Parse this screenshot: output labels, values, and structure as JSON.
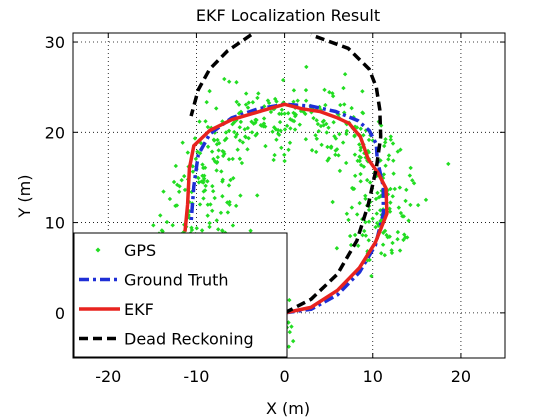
{
  "chart_data": {
    "type": "scatter",
    "title": "EKF Localization Result",
    "xlabel": "X (m)",
    "ylabel": "Y (m)",
    "xlim": [
      -24,
      25
    ],
    "ylim": [
      -5,
      31
    ],
    "xticks": [
      -20,
      -10,
      0,
      10,
      20
    ],
    "yticks": [
      0,
      10,
      20,
      30
    ],
    "grid": true,
    "legend_position": "bottom-left",
    "legend": [
      "GPS",
      "Ground Truth",
      "EKF",
      "Dead Reckoning"
    ],
    "series": [
      {
        "name": "GPS",
        "kind": "scatter",
        "color": "#22dd22",
        "marker": "diamond",
        "note": "noisy GPS fixes scattered around the ground-truth trajectory",
        "center": [
          0.5,
          10.5
        ],
        "mean_radius": 11,
        "noise_std": 2.4,
        "count": 620
      },
      {
        "name": "Ground Truth",
        "kind": "line",
        "color": "#1f2fd6",
        "style": "dash-dot",
        "x": [
          0,
          3,
          6,
          8.5,
          10.3,
          11.2,
          11.2,
          10.5,
          10.4,
          9.6,
          8.3,
          5.8,
          3,
          0,
          -3,
          -6,
          -8.5,
          -9.8,
          -10.3,
          -10.6
        ],
        "y": [
          0,
          0.4,
          2,
          4.5,
          7.5,
          11,
          14,
          17,
          18.7,
          20.2,
          21.3,
          22.3,
          22.9,
          23.1,
          22.6,
          21.6,
          19.8,
          17.5,
          14,
          10
        ]
      },
      {
        "name": "EKF",
        "kind": "line",
        "color": "#e8231f",
        "style": "solid",
        "x": [
          0,
          3,
          6,
          8.5,
          10.3,
          11.6,
          11.5,
          10.6,
          9.5,
          8.6,
          7.3,
          6,
          4,
          2,
          0,
          -2.5,
          -6,
          -8.5,
          -10.3,
          -10.8,
          -11,
          -11.3
        ],
        "y": [
          0,
          0.6,
          2.5,
          5,
          7.8,
          11,
          13.8,
          15.5,
          17,
          19.5,
          21,
          21.6,
          22.3,
          22.6,
          23.1,
          22.4,
          21.4,
          20.2,
          18.5,
          16,
          12,
          9
        ]
      },
      {
        "name": "Dead Reckoning",
        "kind": "line",
        "color": "#000000",
        "style": "dashed",
        "x": [
          0,
          3,
          6,
          8.2,
          9.5,
          10.4,
          10.9,
          10.8,
          10.4,
          9.6,
          7.2,
          3
        ],
        "y": [
          0,
          1.5,
          4.3,
          8,
          12,
          16,
          19.5,
          22.5,
          25,
          27,
          29.3,
          30.8
        ]
      },
      {
        "name": "Dead Reckoning",
        "kind": "line",
        "color": "#000000",
        "style": "dashed",
        "x": [
          -3.8,
          -6.5,
          -8.5,
          -9.8,
          -10.6
        ],
        "y": [
          30.8,
          29,
          27,
          24.7,
          21.8
        ]
      }
    ]
  }
}
